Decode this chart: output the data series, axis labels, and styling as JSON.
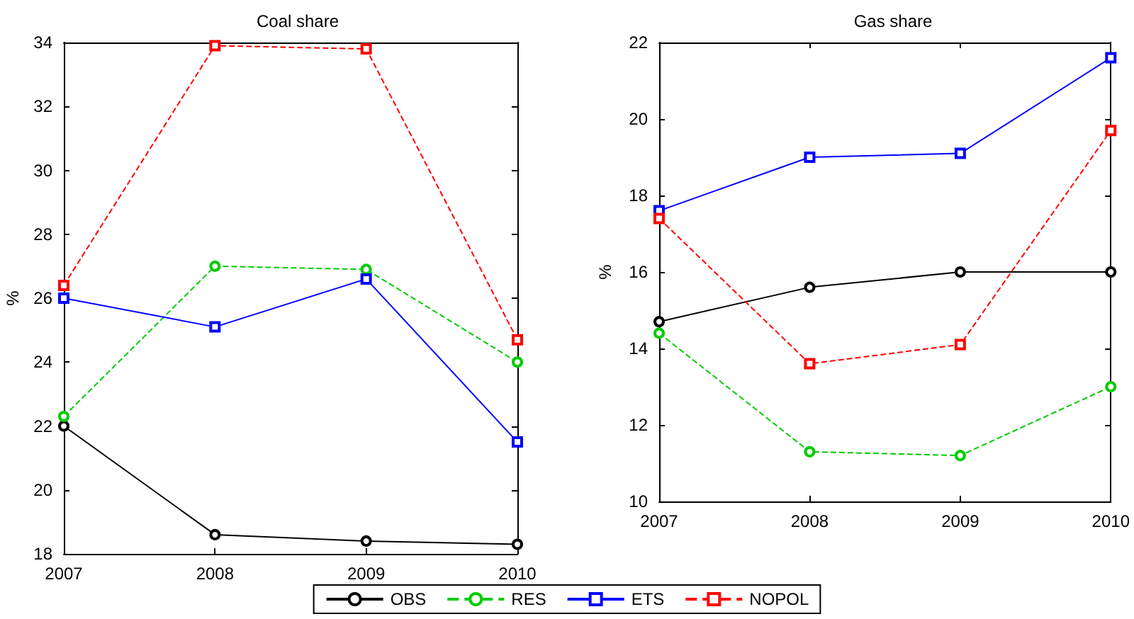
{
  "chart_data": [
    {
      "type": "line",
      "title": "Coal share",
      "ylabel": "%",
      "categories": [
        "2007",
        "2008",
        "2009",
        "2010"
      ],
      "ylim": [
        18,
        34
      ],
      "yticks": [
        18,
        20,
        22,
        24,
        26,
        28,
        30,
        32,
        34
      ],
      "legend": "bottom",
      "grid": false,
      "series": [
        {
          "name": "OBS",
          "color": "#000000",
          "marker": "circle",
          "line_style": "solid",
          "values": [
            22,
            18.6,
            18.4,
            18.3
          ]
        },
        {
          "name": "RES",
          "color": "#00cc00",
          "marker": "circle",
          "line_style": "dashed",
          "values": [
            22.3,
            27,
            26.9,
            24
          ]
        },
        {
          "name": "ETS",
          "color": "#0000ff",
          "marker": "square",
          "line_style": "solid",
          "values": [
            26,
            25.1,
            26.6,
            21.5
          ]
        },
        {
          "name": "NOPOL",
          "color": "#ff0000",
          "marker": "square",
          "line_style": "dashed",
          "values": [
            26.4,
            33.9,
            33.8,
            24.7
          ]
        }
      ]
    },
    {
      "type": "line",
      "title": "Gas share",
      "ylabel": "%",
      "categories": [
        "2007",
        "2008",
        "2009",
        "2010"
      ],
      "ylim": [
        10,
        22
      ],
      "yticks": [
        10,
        12,
        14,
        16,
        18,
        20,
        22
      ],
      "grid": false,
      "series": [
        {
          "color": "#000000",
          "marker": "circle",
          "line_style": "solid",
          "values": [
            14.7,
            15.6,
            16,
            16
          ]
        },
        {
          "color": "#00cc00",
          "marker": "circle",
          "line_style": "dashed",
          "values": [
            14.4,
            11.3,
            11.2,
            13
          ]
        },
        {
          "color": "#0000ff",
          "marker": "square",
          "line_style": "solid",
          "values": [
            17.6,
            19,
            19.1,
            21.6
          ]
        },
        {
          "color": "#ff0000",
          "marker": "square",
          "line_style": "dashed",
          "values": [
            17.4,
            13.6,
            14.1,
            19.7
          ]
        }
      ]
    }
  ]
}
